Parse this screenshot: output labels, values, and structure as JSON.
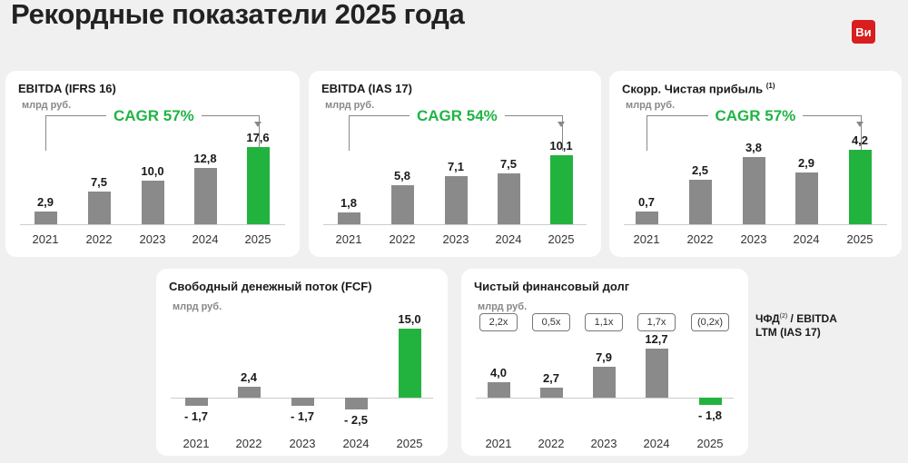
{
  "title": "Рекордные показатели 2025 года",
  "logo": "Ви",
  "unit": "млрд руб.",
  "side_label": {
    "main": "ЧФД",
    "sup": "(2)",
    "rest": " / EBITDA",
    "line2": "LTM (IAS 17)"
  },
  "chart_data": [
    {
      "type": "bar",
      "title": "EBITDA (IFRS 16)",
      "title_sup": "",
      "cagr": "CAGR 57%",
      "categories": [
        "2021",
        "2022",
        "2023",
        "2024",
        "2025"
      ],
      "values": [
        2.9,
        7.5,
        10.0,
        12.8,
        17.6
      ],
      "labels": [
        "2,9",
        "7,5",
        "10,0",
        "12,8",
        "17,6"
      ],
      "highlight": "2025"
    },
    {
      "type": "bar",
      "title": "EBITDA (IAS 17)",
      "title_sup": "",
      "cagr": "CAGR 54%",
      "categories": [
        "2021",
        "2022",
        "2023",
        "2024",
        "2025"
      ],
      "values": [
        1.8,
        5.8,
        7.1,
        7.5,
        10.1
      ],
      "labels": [
        "1,8",
        "5,8",
        "7,1",
        "7,5",
        "10,1"
      ],
      "highlight": "2025"
    },
    {
      "type": "bar",
      "title": "Скорр. Чистая прибыль",
      "title_sup": "(1)",
      "cagr": "CAGR 57%",
      "categories": [
        "2021",
        "2022",
        "2023",
        "2024",
        "2025"
      ],
      "values": [
        0.7,
        2.5,
        3.8,
        2.9,
        4.2
      ],
      "labels": [
        "0,7",
        "2,5",
        "3,8",
        "2,9",
        "4,2"
      ],
      "highlight": "2025"
    },
    {
      "type": "bar",
      "title": "Свободный денежный поток (FCF)",
      "title_sup": "",
      "categories": [
        "2021",
        "2022",
        "2023",
        "2024",
        "2025"
      ],
      "values": [
        -1.7,
        2.4,
        -1.7,
        -2.5,
        15.0
      ],
      "labels": [
        "- 1,7",
        "2,4",
        "- 1,7",
        "- 2,5",
        "15,0"
      ],
      "highlight": "2025"
    },
    {
      "type": "bar",
      "title": "Чистый финансовый долг",
      "title_sup": "",
      "categories": [
        "2021",
        "2022",
        "2023",
        "2024",
        "2025"
      ],
      "values": [
        4.0,
        2.7,
        7.9,
        12.7,
        -1.8
      ],
      "labels": [
        "4,0",
        "2,7",
        "7,9",
        "12,7",
        "- 1,8"
      ],
      "ratios": [
        "2,2x",
        "0,5x",
        "1,1x",
        "1,7x",
        "(0,2x)"
      ],
      "highlight": "2025"
    }
  ]
}
